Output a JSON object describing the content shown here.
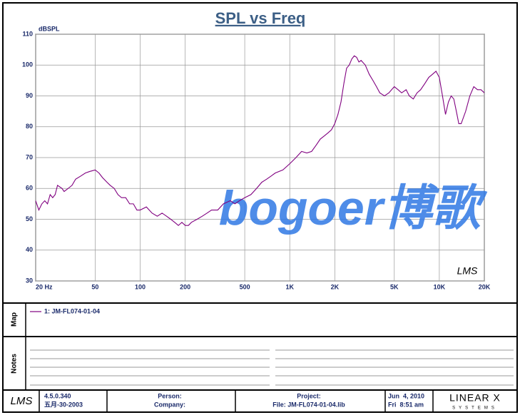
{
  "chart_data": {
    "type": "line",
    "title": "SPL vs Freq",
    "y_label": "dBSPL",
    "xscale": "log",
    "grid": true,
    "x": [
      20,
      21,
      22,
      23,
      24,
      25,
      26,
      27,
      28,
      30,
      31,
      33,
      35,
      37,
      40,
      43,
      46,
      50,
      53,
      56,
      60,
      63,
      67,
      71,
      75,
      80,
      85,
      90,
      95,
      100,
      110,
      120,
      130,
      140,
      150,
      160,
      170,
      180,
      190,
      200,
      210,
      220,
      240,
      260,
      280,
      300,
      330,
      360,
      400,
      430,
      460,
      500,
      550,
      600,
      650,
      700,
      750,
      800,
      900,
      1000,
      1100,
      1200,
      1300,
      1400,
      1500,
      1600,
      1700,
      1800,
      1900,
      2000,
      2100,
      2200,
      2300,
      2400,
      2500,
      2600,
      2700,
      2800,
      2900,
      3000,
      3200,
      3400,
      3600,
      3800,
      4000,
      4300,
      4600,
      5000,
      5300,
      5600,
      6000,
      6300,
      6700,
      7100,
      7500,
      8000,
      8500,
      9000,
      9500,
      10000,
      10500,
      11000,
      11500,
      12000,
      12500,
      13000,
      13500,
      14000,
      15000,
      16000,
      17000,
      18000,
      19000,
      20000
    ],
    "series": [
      {
        "name": "1: JM-FL074-01-04",
        "color": "#800080",
        "values": [
          56,
          53,
          55,
          56,
          55,
          58,
          57,
          58,
          61,
          60,
          59,
          60,
          61,
          63,
          64,
          65,
          65.5,
          66,
          65,
          63.5,
          62,
          61,
          60,
          58,
          57,
          57,
          55,
          55,
          53,
          53,
          54,
          52,
          51,
          52,
          51,
          50,
          49,
          48,
          49,
          48,
          48,
          49,
          50,
          51,
          52,
          53,
          53,
          55,
          56,
          55,
          56,
          57,
          58,
          60,
          62,
          63,
          64,
          65,
          66,
          68,
          70,
          72,
          71.5,
          72,
          74,
          76,
          77,
          78,
          79,
          81,
          84,
          88,
          94,
          99,
          100,
          102,
          103,
          102.5,
          101,
          101.5,
          100,
          97,
          95,
          93,
          91,
          90,
          91,
          93,
          92,
          91,
          92,
          90,
          89,
          91,
          92,
          94,
          96,
          97,
          98,
          96,
          90,
          84,
          88,
          90,
          89,
          85,
          81,
          81,
          85,
          90,
          93,
          92,
          92,
          91
        ]
      }
    ],
    "xlim": [
      20,
      20000
    ],
    "xticks": [
      {
        "value": 20,
        "label": "20 Hz"
      },
      50,
      100,
      200,
      500,
      {
        "value": 1000,
        "label": "1K"
      },
      {
        "value": 2000,
        "label": "2K"
      },
      {
        "value": 5000,
        "label": "5K"
      },
      {
        "value": 10000,
        "label": "10K"
      },
      {
        "value": 20000,
        "label": "20K"
      }
    ],
    "ylim": [
      30,
      110
    ],
    "yticks": [
      30,
      40,
      50,
      60,
      70,
      80,
      90,
      100,
      110
    ],
    "plot_logo": "LMS",
    "watermark": "bogoer博歌"
  },
  "panels": {
    "map": "Map",
    "notes": "Notes"
  },
  "footer": {
    "logo": "LMS",
    "version": "4.5.0.340",
    "version_date": "五月-30-2003",
    "person": "Person:",
    "company": "Company:",
    "project": "Project:",
    "file": "File: JM-FL074-01-04.lib",
    "date": "Jun  4, 2010",
    "time": "Fri  8:51 am",
    "brand": "LINEAR X",
    "brand_sub": "SYSTEMS"
  }
}
